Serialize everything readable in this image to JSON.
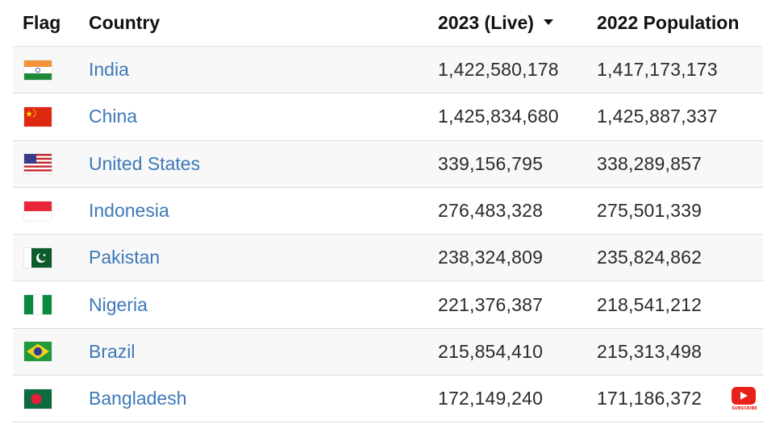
{
  "header": {
    "flag": "Flag",
    "country": "Country",
    "live": "2023 (Live)",
    "pop2022": "2022 Population",
    "sort_icon": "caret-down-icon"
  },
  "rows": [
    {
      "country": "India",
      "live": "1,422,580,178",
      "pop2022": "1,417,173,173",
      "flag_icon": "india-flag-icon"
    },
    {
      "country": "China",
      "live": "1,425,834,680",
      "pop2022": "1,425,887,337",
      "flag_icon": "china-flag-icon"
    },
    {
      "country": "United States",
      "live": "339,156,795",
      "pop2022": "338,289,857",
      "flag_icon": "united-states-flag-icon"
    },
    {
      "country": "Indonesia",
      "live": "276,483,328",
      "pop2022": "275,501,339",
      "flag_icon": "indonesia-flag-icon"
    },
    {
      "country": "Pakistan",
      "live": "238,324,809",
      "pop2022": "235,824,862",
      "flag_icon": "pakistan-flag-icon"
    },
    {
      "country": "Nigeria",
      "live": "221,376,387",
      "pop2022": "218,541,212",
      "flag_icon": "nigeria-flag-icon"
    },
    {
      "country": "Brazil",
      "live": "215,854,410",
      "pop2022": "215,313,498",
      "flag_icon": "brazil-flag-icon"
    },
    {
      "country": "Bangladesh",
      "live": "172,149,240",
      "pop2022": "171,186,372",
      "flag_icon": "bangladesh-flag-icon"
    }
  ],
  "colors": {
    "link": "#3d78b8",
    "youtube": "#e62117"
  },
  "overlay": {
    "subscribe_label": "SUBSCRIBE",
    "icon": "youtube-play-icon"
  }
}
